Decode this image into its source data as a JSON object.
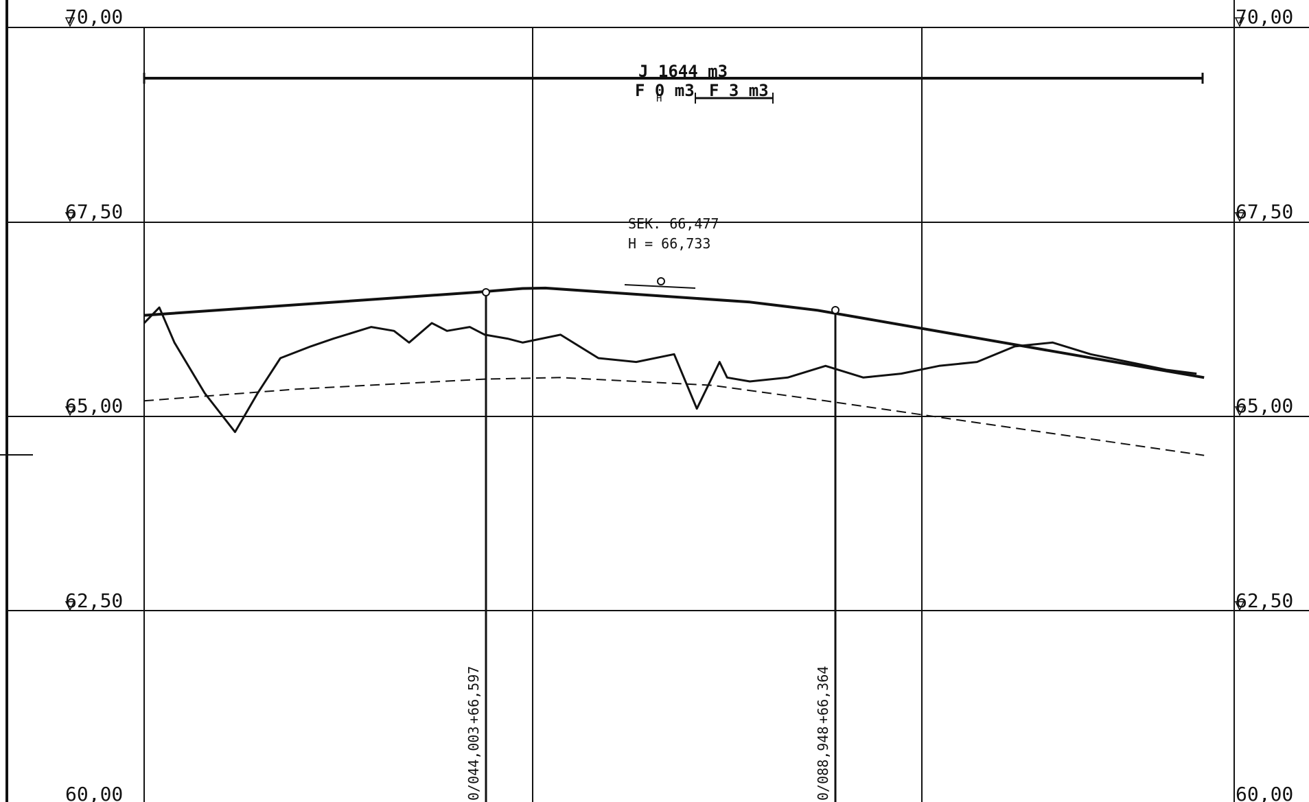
{
  "elevation_labels": [
    "70,00",
    "67,50",
    "65,00",
    "62,50",
    "60,00"
  ],
  "earthwork": {
    "cut_label": "J 1644 m3",
    "fill_label_1": "F 0 m3",
    "fill_label_2": "F 3 m3",
    "small_mark": "H"
  },
  "curve_info": {
    "line1": "SEK. 66,477",
    "line2": "H = 66,733"
  },
  "stations": [
    {
      "label": "0/044,003",
      "elevation": "+66,597"
    },
    {
      "label": "0/088,948",
      "elevation": "+66,364"
    }
  ],
  "colors": {
    "ink": "#111111",
    "background": "#ffffff"
  },
  "chart_data": {
    "type": "line",
    "yticks": [
      70.0,
      67.5,
      65.0,
      62.5,
      60.0
    ],
    "ylim": [
      60,
      70
    ],
    "grid": true,
    "series": [
      {
        "style": "solid-thick",
        "x": [
          0,
          44.003,
          50,
          53,
          80,
          88.948,
          140
        ],
        "y": [
          66.3,
          66.597,
          66.645,
          66.65,
          66.47,
          66.364,
          65.5
        ]
      },
      {
        "style": "jagged",
        "x": [
          0,
          2,
          4,
          8,
          12,
          15,
          18,
          22,
          25,
          30,
          33,
          35,
          38,
          40,
          43,
          45,
          48,
          50,
          55,
          60,
          65,
          70,
          73,
          76,
          77,
          80,
          85,
          90,
          95,
          100,
          105,
          110,
          115,
          120,
          125,
          130,
          135,
          139
        ],
        "y": [
          66.2,
          66.4,
          65.95,
          65.3,
          64.8,
          65.3,
          65.75,
          65.9,
          66.0,
          66.15,
          66.1,
          65.95,
          66.2,
          66.1,
          66.15,
          66.05,
          66.0,
          65.95,
          66.05,
          65.75,
          65.7,
          65.8,
          65.1,
          65.7,
          65.5,
          65.45,
          65.5,
          65.65,
          65.5,
          65.55,
          65.65,
          65.7,
          65.9,
          65.95,
          65.8,
          65.7,
          65.6,
          65.55
        ]
      },
      {
        "style": "dashed",
        "x": [
          0,
          20,
          45,
          55,
          75,
          90,
          140
        ],
        "y": [
          65.2,
          65.35,
          65.48,
          65.5,
          65.4,
          65.2,
          64.5
        ]
      }
    ]
  }
}
